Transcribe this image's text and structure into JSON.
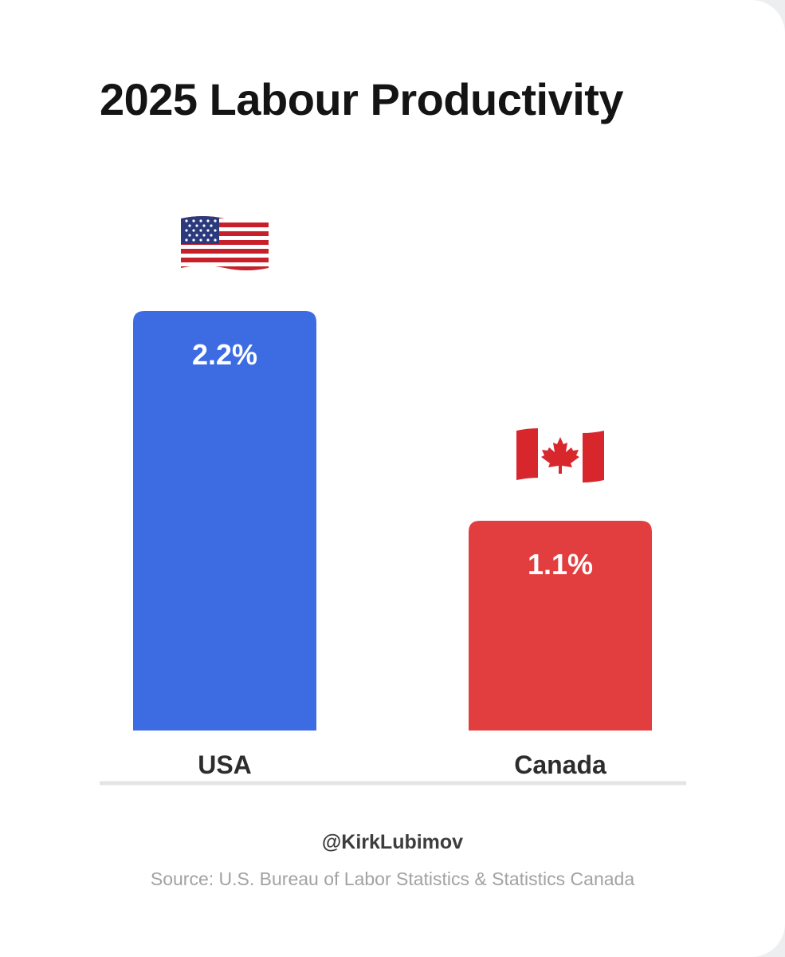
{
  "chart_data": {
    "type": "bar",
    "title": "2025 Labour Productivity",
    "categories": [
      "USA",
      "Canada"
    ],
    "values": [
      2.2,
      1.1
    ],
    "value_labels": [
      "2.2%",
      "1.1%"
    ],
    "flags": [
      "us-flag-icon",
      "canada-flag-icon"
    ],
    "colors": [
      "#3c6be2",
      "#e23e3f"
    ],
    "xlabel": "",
    "ylabel": "",
    "ylim": [
      0,
      2.2
    ],
    "grid": false
  },
  "footer": {
    "handle": "@KirkLubimov",
    "source": "Source: U.S. Bureau of Labor Statistics & Statistics Canada"
  }
}
